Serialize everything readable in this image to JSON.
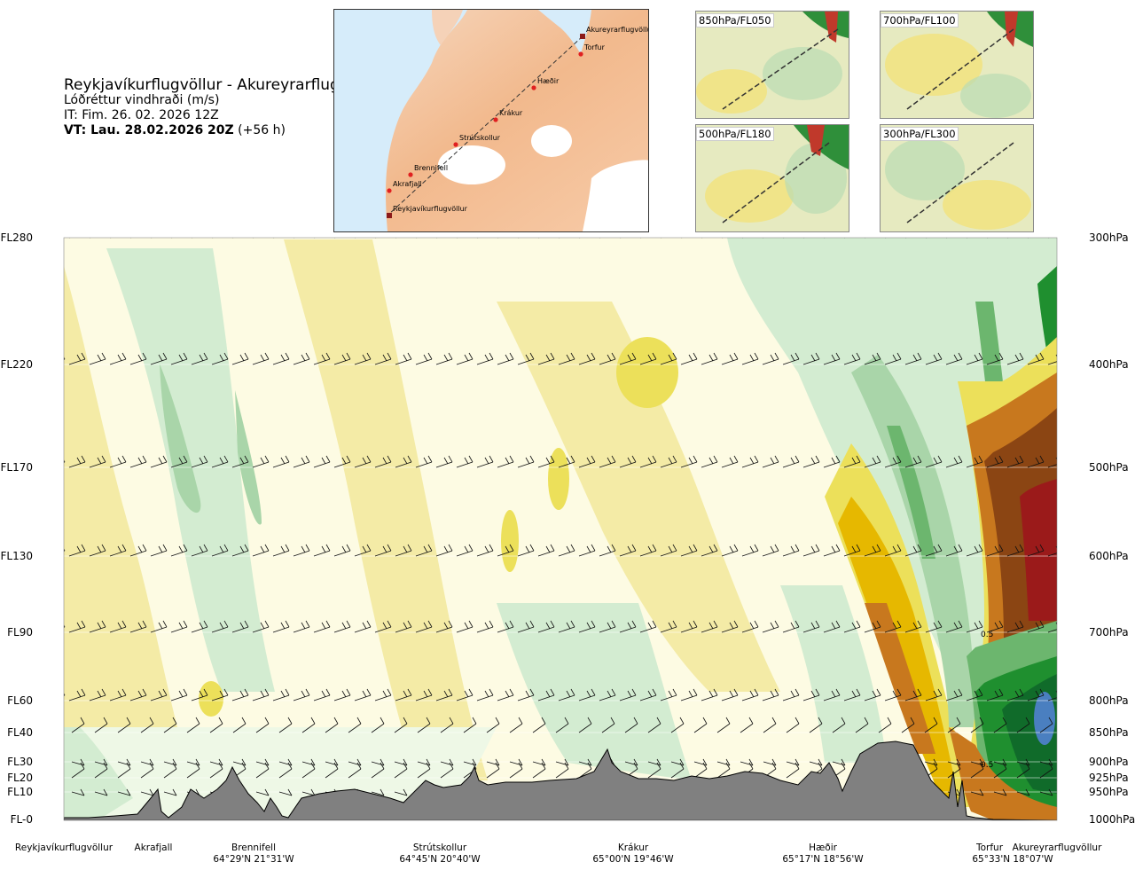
{
  "header": {
    "route_title": "Reykjavíkurflugvöllur - Akureyrarflugvöllur",
    "parameter": "Lóðréttur vindhraði (m/s)",
    "issue_time": "IT: Fim. 26. 02. 2026 12Z",
    "valid_time_label": "VT: Lau. 28.02.2026 20Z",
    "valid_time_offset": " (+56 h)"
  },
  "route_map": {
    "waypoints": [
      "Akureyrarflugvöllur",
      "Torfur",
      "Hæðir",
      "Krákur",
      "Strútskollur",
      "Brennifell",
      "Akrafjall",
      "Reykjavíkurflugvöllur"
    ]
  },
  "level_maps": [
    {
      "label": "850hPa/FL050"
    },
    {
      "label": "700hPa/FL100"
    },
    {
      "label": "500hPa/FL180"
    },
    {
      "label": "300hPa/FL300"
    }
  ],
  "chart_data": {
    "type": "heatmap",
    "title": "Lóðréttur vindhraði (m/s)",
    "flight_levels": [
      "FL280",
      "FL220",
      "FL170",
      "FL130",
      "FL90",
      "FL60",
      "FL40",
      "FL30",
      "FL20",
      "FL10",
      "FL-0"
    ],
    "pressure_levels": [
      "300hPa",
      "400hPa",
      "500hPa",
      "600hPa",
      "700hPa",
      "800hPa",
      "850hPa",
      "900hPa",
      "925hPa",
      "950hPa",
      "1000hPa"
    ],
    "contour_labels": [
      "0.5",
      "0.5"
    ],
    "waypoints": [
      {
        "name": "Reykjavíkurflugvöllur",
        "coord": ""
      },
      {
        "name": "Akrafjall",
        "coord": ""
      },
      {
        "name": "Brennifell",
        "coord": "64°29'N 21°31'W"
      },
      {
        "name": "Strútskollur",
        "coord": "64°45'N 20°40'W"
      },
      {
        "name": "Krákur",
        "coord": "65°00'N 19°46'W"
      },
      {
        "name": "Hæðir",
        "coord": "65°17'N 18°56'W"
      },
      {
        "name": "Torfur",
        "coord": "65°33'N 18°07'W"
      },
      {
        "name": "Akureyrarflugvöllur",
        "coord": ""
      }
    ],
    "colors": {
      "strong_down": "#9b1a1a",
      "down_4": "#8b4513",
      "down_3": "#c8781e",
      "down_2": "#e6b800",
      "down_1": "#ece05a",
      "down_0": "#f4eba6",
      "neutral_down": "#fdfbe3",
      "neutral_up": "#eef8e6",
      "up_0": "#d3ecd1",
      "up_1": "#a9d5a9",
      "up_2": "#6cb66e",
      "up_3": "#1f8f2f",
      "up_4": "#106b2a",
      "up_5": "#4a7fc0",
      "terrain": "#808080"
    }
  }
}
